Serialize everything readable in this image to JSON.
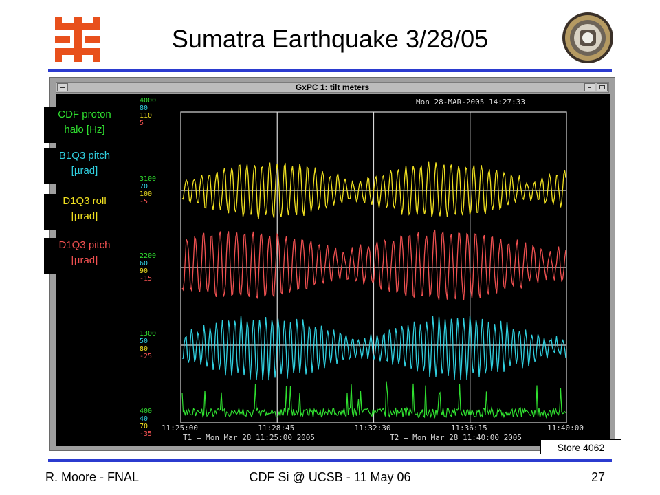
{
  "slide": {
    "title": "Sumatra Earthquake 3/28/05",
    "footer_left": "R. Moore - FNAL",
    "footer_center": "CDF Si @ UCSB - 11 May 06",
    "page_number": "27",
    "store_label": "Store 4062"
  },
  "colors": {
    "rule": "#2b3bcf",
    "fnal_logo": "#e8501c",
    "yellow": "#f0e020",
    "red": "#f05050",
    "cyan": "#30d0e0",
    "green": "#30e030",
    "grid": "#d8d8d8",
    "screen_bg": "#000000"
  },
  "icons": {
    "fnal_logo": "fermilab-logo",
    "cdf_logo": "cdf-detector-logo"
  },
  "window": {
    "title": "GxPC 1: tilt meters",
    "timestamp": "Mon 28-MAR-2005 14:27:33",
    "t1": "T1 = Mon Mar 28 11:25:00 2005",
    "t2": "T2 = Mon Mar 28 11:40:00 2005"
  },
  "side_labels": [
    {
      "line1": "CDF proton",
      "line2": "halo  [Hz]",
      "color": "#30e030"
    },
    {
      "line1": "B1Q3 pitch",
      "line2": "[µrad]",
      "color": "#30d0e0"
    },
    {
      "line1": "D1Q3 roll",
      "line2": "[µrad]",
      "color": "#f0e020"
    },
    {
      "line1": "D1Q3 pitch",
      "line2": "[µrad]",
      "color": "#f05050"
    }
  ],
  "chart_data": {
    "type": "line",
    "title": "GxPC 1: tilt meters",
    "x_ticks": [
      "11:25:00",
      "11:28:45",
      "11:32:30",
      "11:36:15",
      "11:40:00"
    ],
    "xlim": [
      "11:25:00",
      "11:40:00"
    ],
    "y_axis_labels": [
      {
        "level": "top",
        "values": [
          {
            "text": "4000",
            "color": "#30e030"
          },
          {
            "text": "80",
            "color": "#30d0e0"
          },
          {
            "text": "110",
            "color": "#f0e020"
          },
          {
            "text": "5",
            "color": "#f05050"
          }
        ]
      },
      {
        "level": "upper",
        "values": [
          {
            "text": "3100",
            "color": "#30e030"
          },
          {
            "text": "70",
            "color": "#30d0e0"
          },
          {
            "text": "100",
            "color": "#f0e020"
          },
          {
            "text": "-5",
            "color": "#f05050"
          }
        ]
      },
      {
        "level": "middle",
        "values": [
          {
            "text": "2200",
            "color": "#30e030"
          },
          {
            "text": "60",
            "color": "#30d0e0"
          },
          {
            "text": "90",
            "color": "#f0e020"
          },
          {
            "text": "-15",
            "color": "#f05050"
          }
        ]
      },
      {
        "level": "lower",
        "values": [
          {
            "text": "1300",
            "color": "#30e030"
          },
          {
            "text": "50",
            "color": "#30d0e0"
          },
          {
            "text": "80",
            "color": "#f0e020"
          },
          {
            "text": "-25",
            "color": "#f05050"
          }
        ]
      },
      {
        "level": "bottom",
        "values": [
          {
            "text": "400",
            "color": "#30e030"
          },
          {
            "text": "40",
            "color": "#30d0e0"
          },
          {
            "text": "70",
            "color": "#f0e020"
          },
          {
            "text": "-35",
            "color": "#f05050"
          }
        ]
      }
    ],
    "series": [
      {
        "name": "D1Q3 roll",
        "color": "#f0e020",
        "baseline": 100,
        "description_values": "oscillating ~92-108 between 11:25 and 11:40"
      },
      {
        "name": "D1Q3 pitch",
        "color": "#f05050",
        "baseline": -15,
        "description_values": "oscillating ~-24 to -2"
      },
      {
        "name": "B1Q3 pitch",
        "color": "#30d0e0",
        "baseline": 50,
        "description_values": "oscillating ~42-58"
      },
      {
        "name": "CDF proton halo",
        "color": "#30e030",
        "baseline": 400,
        "description_values": "~400-900 with spikes"
      }
    ],
    "grid": true
  }
}
